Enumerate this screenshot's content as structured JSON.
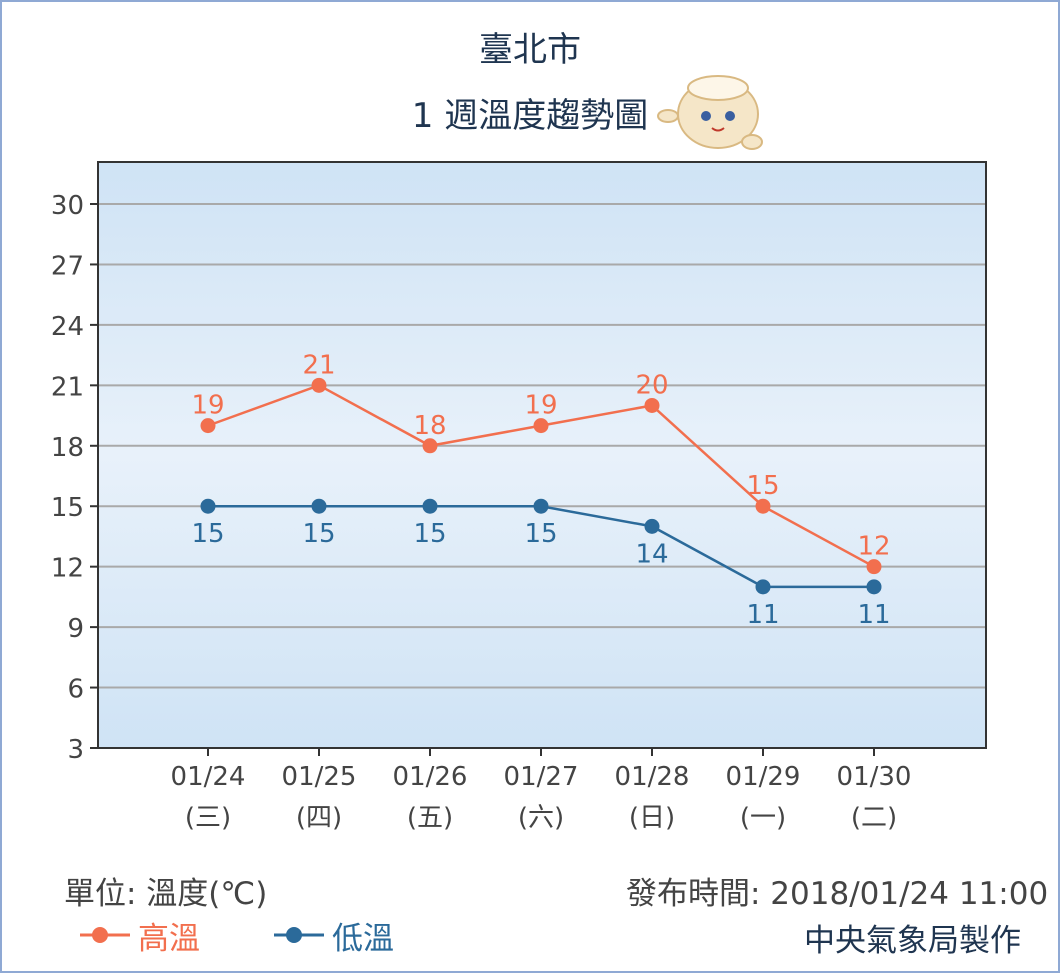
{
  "header": {
    "city": "臺北市",
    "subtitle": "1 週溫度趨勢圖"
  },
  "chart_data": {
    "type": "line",
    "title": "臺北市",
    "subtitle": "1 週溫度趨勢圖",
    "categories": [
      "01/24",
      "01/25",
      "01/26",
      "01/27",
      "01/28",
      "01/29",
      "01/30"
    ],
    "weekdays": [
      "(三)",
      "(四)",
      "(五)",
      "(六)",
      "(日)",
      "(一)",
      "(二)"
    ],
    "series": [
      {
        "name": "高溫",
        "color": "#f26f4e",
        "values": [
          19,
          21,
          18,
          19,
          20,
          15,
          12
        ]
      },
      {
        "name": "低溫",
        "color": "#2b6a9a",
        "values": [
          15,
          15,
          15,
          15,
          14,
          11,
          11
        ]
      }
    ],
    "ylim": [
      3,
      30
    ],
    "yticks": [
      3,
      6,
      9,
      12,
      15,
      18,
      21,
      24,
      27,
      30
    ],
    "grid": true,
    "legend": "bottom-left"
  },
  "footer": {
    "unit": "單位: 溫度(℃)",
    "published": "發布時間: 2018/01/24 11:00",
    "maker": "中央氣象局製作"
  }
}
